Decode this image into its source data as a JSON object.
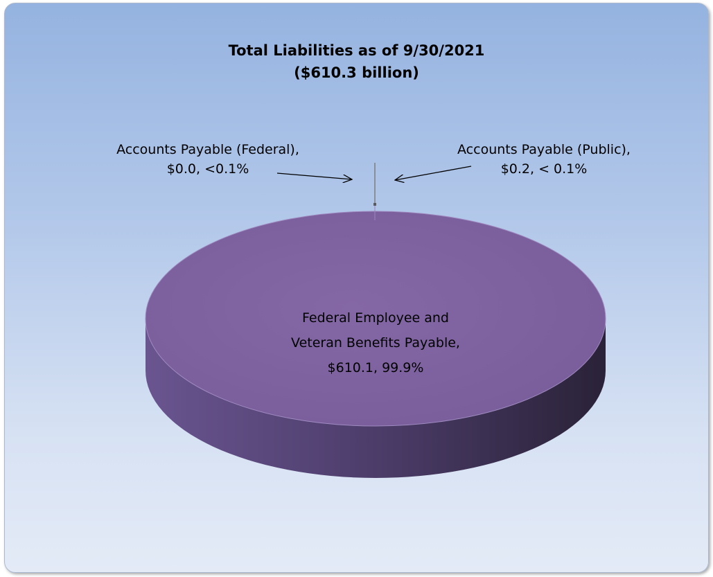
{
  "chart_data": {
    "type": "pie",
    "title": "Total Liabilities as of 9/30/2021",
    "subtitle": "($610.3 billion)",
    "slices": [
      {
        "name": "Federal Employee and Veteran Benefits Payable",
        "value": 610.1,
        "percent_label": "99.9%",
        "value_label": "$610.1",
        "color": "#7f639f"
      },
      {
        "name": "Accounts Payable (Federal)",
        "value": 0.0,
        "percent_label": "<0.1%",
        "value_label": "$0.0",
        "color": "#9a86b8"
      },
      {
        "name": "Accounts Payable (Public)",
        "value": 0.2,
        "percent_label": "< 0.1%",
        "value_label": "$0.2",
        "color": "#6f6f6f"
      }
    ],
    "labels": {
      "main": [
        "Federal Employee and",
        "Veteran Benefits Payable,",
        "$610.1, 99.9%"
      ],
      "federal": [
        "Accounts Payable (Federal),",
        "$0.0, <0.1%"
      ],
      "public": [
        "Accounts Payable (Public),",
        "$0.2, < 0.1%"
      ]
    },
    "legend": "none",
    "grid": false
  }
}
